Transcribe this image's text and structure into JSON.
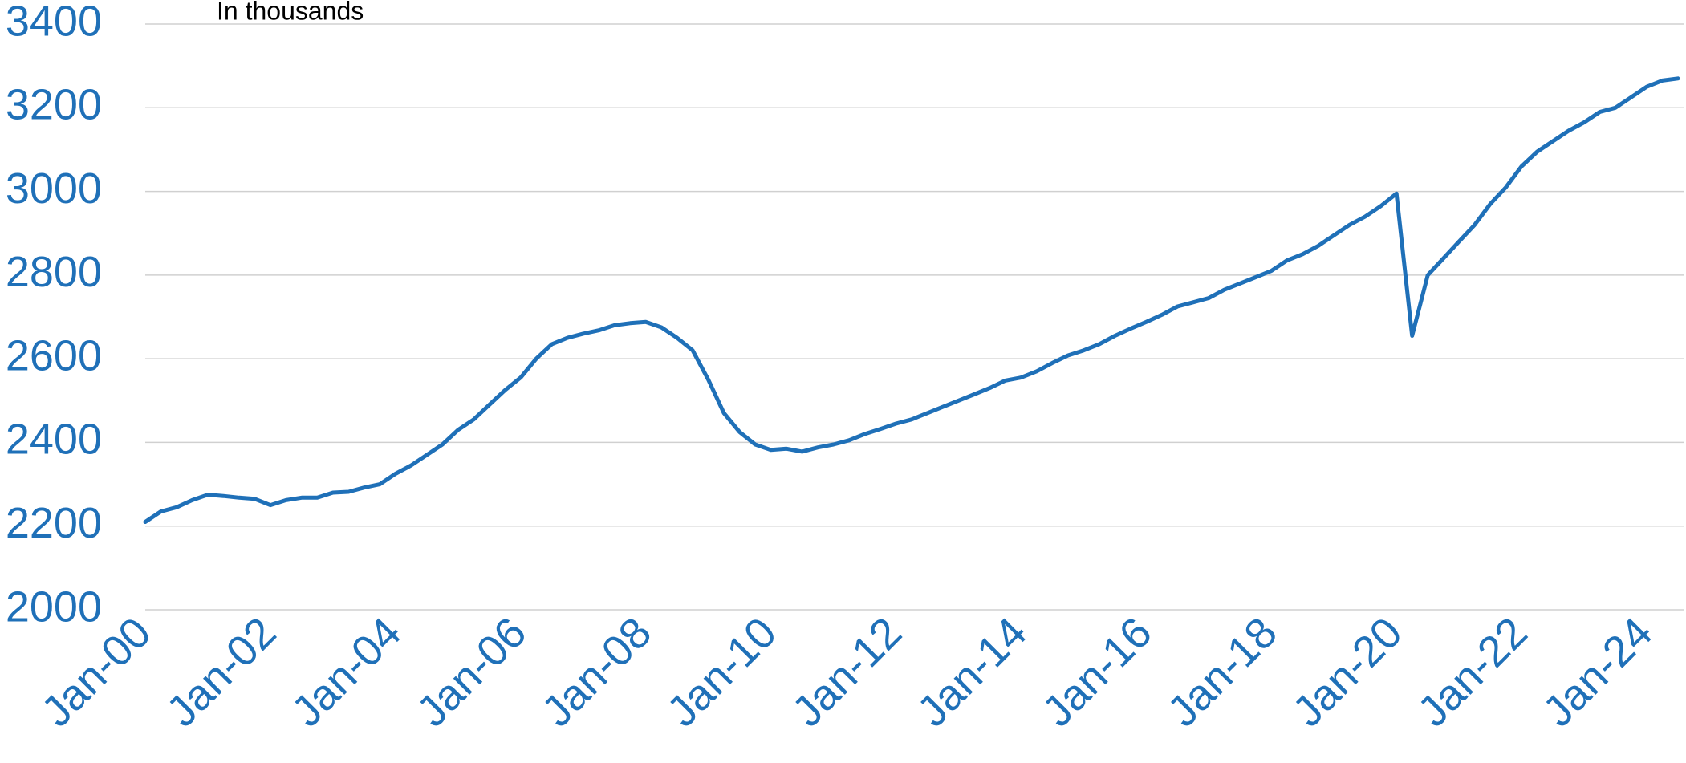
{
  "chart_data": {
    "type": "line",
    "subtitle": "In thousands",
    "categories": [
      "Jan-00",
      null,
      null,
      null,
      null,
      null,
      null,
      null,
      "Jan-02",
      null,
      null,
      null,
      null,
      null,
      null,
      null,
      "Jan-04",
      null,
      null,
      null,
      null,
      null,
      null,
      null,
      "Jan-06",
      null,
      null,
      null,
      null,
      null,
      null,
      null,
      "Jan-08",
      null,
      null,
      null,
      null,
      null,
      null,
      null,
      "Jan-10",
      null,
      null,
      null,
      null,
      null,
      null,
      null,
      "Jan-12",
      null,
      null,
      null,
      null,
      null,
      null,
      null,
      "Jan-14",
      null,
      null,
      null,
      null,
      null,
      null,
      null,
      "Jan-16",
      null,
      null,
      null,
      null,
      null,
      null,
      null,
      "Jan-18",
      null,
      null,
      null,
      null,
      null,
      null,
      null,
      "Jan-20",
      null,
      null,
      null,
      null,
      null,
      null,
      null,
      "Jan-22",
      null,
      null,
      null,
      null,
      null,
      null,
      null,
      "Jan-24",
      null,
      null
    ],
    "series": [
      {
        "name": null,
        "color": "#1f70b8",
        "values": [
          2210,
          2235,
          2245,
          2262,
          2275,
          2272,
          2268,
          2265,
          2250,
          2262,
          2268,
          2268,
          2280,
          2282,
          2292,
          2300,
          2325,
          2345,
          2370,
          2395,
          2430,
          2455,
          2490,
          2525,
          2555,
          2600,
          2635,
          2650,
          2660,
          2668,
          2680,
          2685,
          2688,
          2675,
          2650,
          2620,
          2550,
          2470,
          2425,
          2395,
          2382,
          2385,
          2378,
          2388,
          2395,
          2405,
          2420,
          2432,
          2445,
          2455,
          2470,
          2485,
          2500,
          2515,
          2530,
          2548,
          2555,
          2570,
          2590,
          2608,
          2620,
          2635,
          2655,
          2672,
          2688,
          2705,
          2725,
          2735,
          2745,
          2765,
          2780,
          2795,
          2810,
          2835,
          2850,
          2870,
          2895,
          2920,
          2940,
          2965,
          2995,
          2655,
          2800,
          2840,
          2880,
          2920,
          2970,
          3010,
          3060,
          3095,
          3120,
          3145,
          3165,
          3190,
          3200,
          3225,
          3250,
          3265,
          3270
        ]
      }
    ],
    "ylim": [
      2000,
      3400
    ],
    "yticks": [
      2000,
      2200,
      2400,
      2600,
      2800,
      3000,
      3200,
      3400
    ],
    "grid": true
  }
}
